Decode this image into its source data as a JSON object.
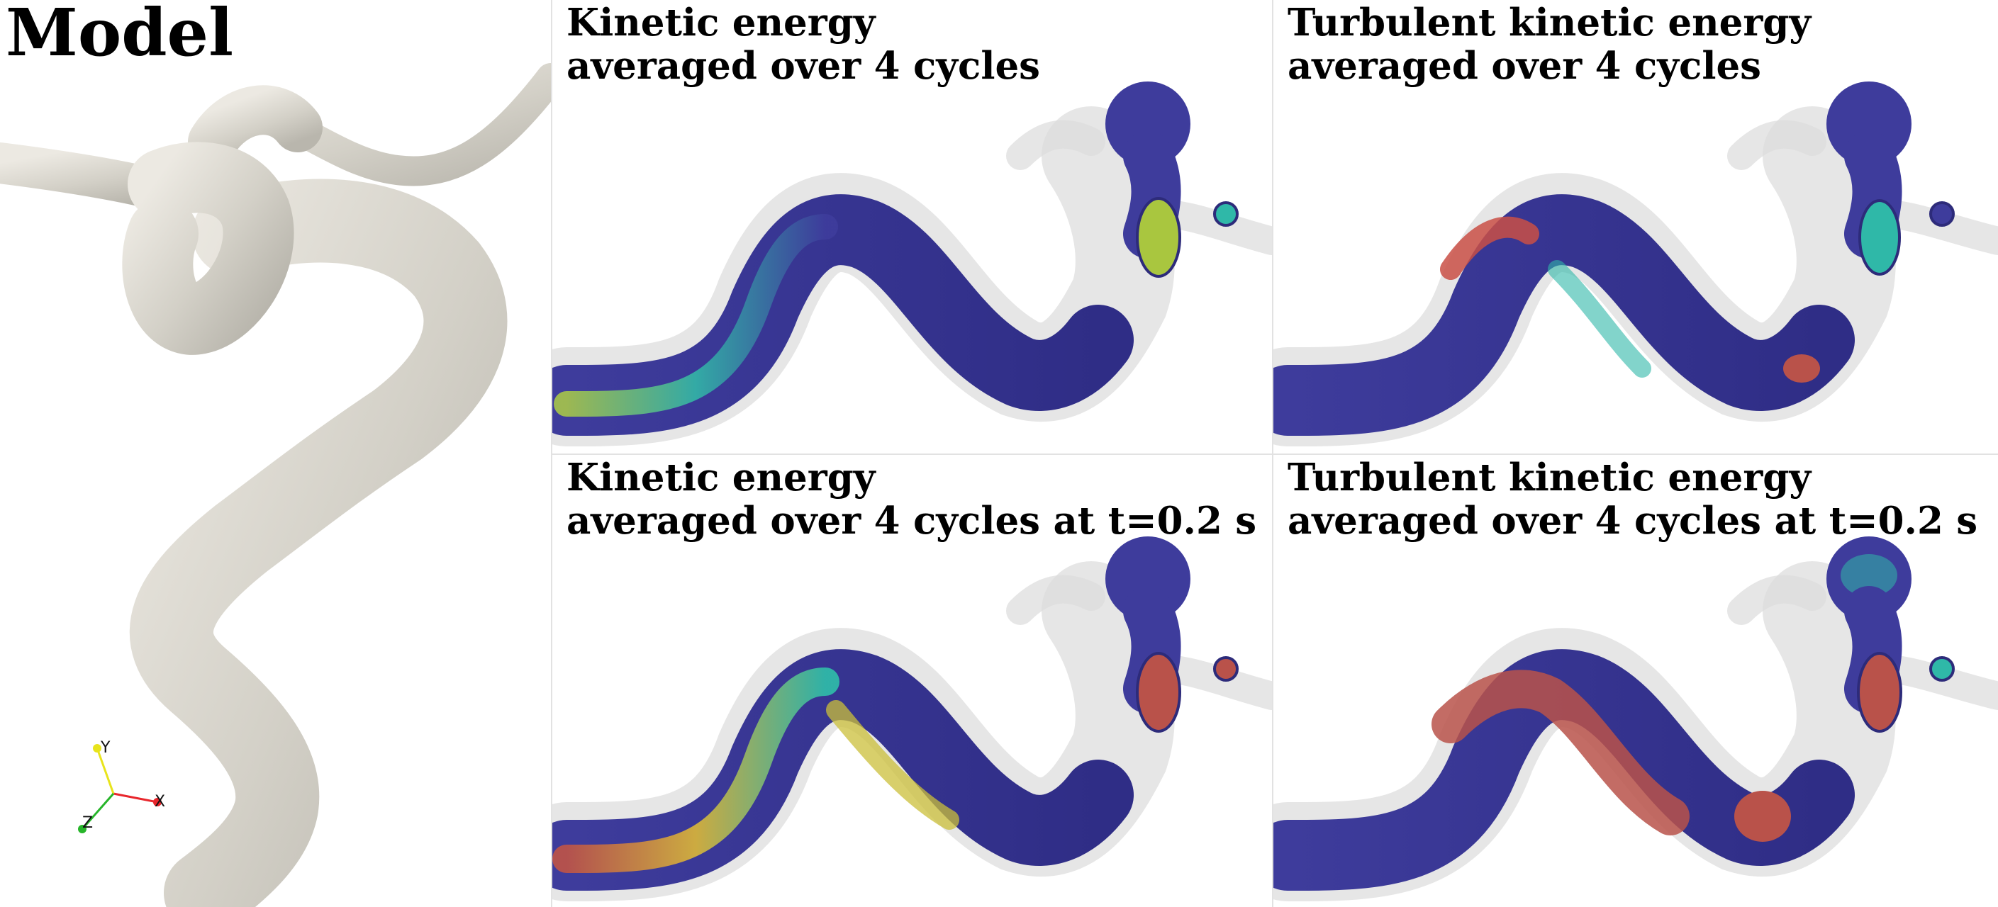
{
  "model": {
    "title": "Model",
    "axes": {
      "x": "X",
      "y": "Y",
      "z": "Z"
    },
    "colors": {
      "surface": "#d6d3cb",
      "axis_x": "#e8262c",
      "axis_y": "#e8e41c",
      "axis_z": "#27b52a"
    }
  },
  "panels": [
    {
      "id": "ke-avg",
      "line1": "Kinetic energy",
      "line2": "averaged over 4 cycles"
    },
    {
      "id": "tke-avg",
      "line1": "Turbulent kinetic energy",
      "line2": "averaged over 4 cycles"
    },
    {
      "id": "ke-avg-t",
      "line1": "Kinetic energy",
      "line2": "averaged over 4 cycles at t=0.2 s"
    },
    {
      "id": "tke-avg-t",
      "line1": "Turbulent kinetic energy",
      "line2": "averaged over 4 cycles at t=0.2 s"
    }
  ],
  "colormap": {
    "low": "#3d3a9a",
    "mid": "#2fb8a8",
    "high": "#c9c53a",
    "max": "#b9524a"
  }
}
